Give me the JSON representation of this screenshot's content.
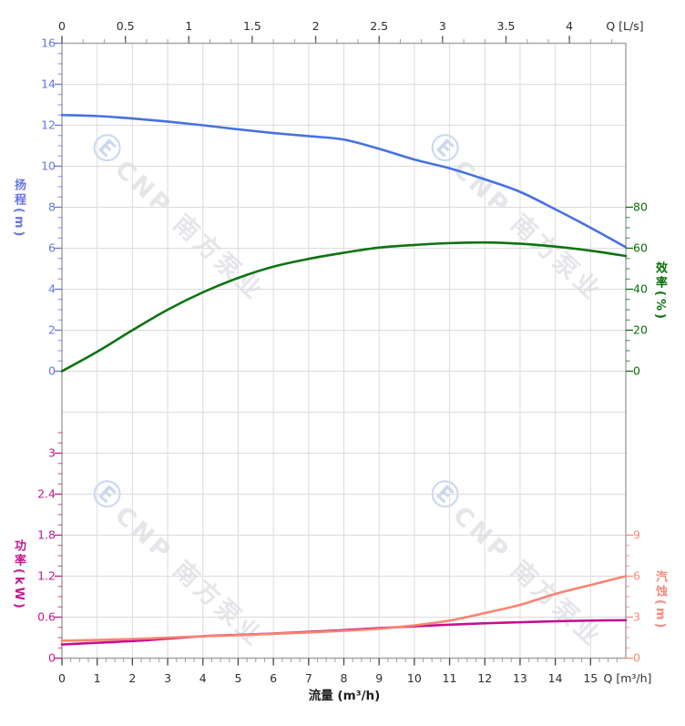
{
  "watermark": {
    "logo": "Ⓔ",
    "text": "CNP 南方泵业"
  },
  "chart_data": {
    "type": "line",
    "title": "",
    "grid": true,
    "axes": {
      "x_top": {
        "unit_label": "Q [L/s]",
        "range_lps": [
          0,
          4.444
        ],
        "majors": [
          0,
          0.5,
          1,
          1.5,
          2,
          2.5,
          3,
          3.5,
          4
        ],
        "minor_step_lps": 0.1667,
        "color": "#2e2e2e"
      },
      "x_bottom": {
        "unit_label": "Q [m³/h]",
        "axis_title": "流量 (m³/h)",
        "range": [
          0,
          16
        ],
        "majors": [
          0,
          1,
          2,
          3,
          4,
          5,
          6,
          7,
          8,
          9,
          10,
          11,
          12,
          13,
          14,
          15
        ],
        "minor_step": 0.25,
        "color": "#2e2e2e"
      },
      "y_head": {
        "title": "扬程(m)",
        "range": [
          0,
          16
        ],
        "majors": [
          0,
          2,
          4,
          6,
          8,
          10,
          12,
          14,
          16
        ],
        "minor_step": 0.5,
        "color": "#6674e4"
      },
      "y_eff": {
        "title": "效率(%)",
        "range": [
          0,
          80
        ],
        "majors": [
          0,
          20,
          40,
          60,
          80
        ],
        "minor_step": 5,
        "color": "#0a6e0a"
      },
      "y_power": {
        "title": "功率(kW)",
        "range": [
          0,
          3.3
        ],
        "majors": [
          0,
          0.6,
          1.2,
          1.8,
          2.4,
          3
        ],
        "minor_step": 0.15,
        "color": "#c6168f"
      },
      "y_npsh": {
        "title": "汽蚀(m)",
        "range": [
          0,
          9
        ],
        "majors": [
          0,
          3,
          6,
          9
        ],
        "minor_step": 0.75,
        "color": "#f9897b"
      }
    },
    "series": [
      {
        "name": "head",
        "y_axis": "y_head",
        "color": "#4572e2",
        "points": [
          [
            0,
            12.5
          ],
          [
            1,
            12.45
          ],
          [
            2,
            12.33
          ],
          [
            3,
            12.18
          ],
          [
            4,
            12.0
          ],
          [
            5,
            11.8
          ],
          [
            6,
            11.62
          ],
          [
            7,
            11.47
          ],
          [
            8,
            11.3
          ],
          [
            9,
            10.85
          ],
          [
            10,
            10.33
          ],
          [
            11,
            9.9
          ],
          [
            12,
            9.36
          ],
          [
            13,
            8.75
          ],
          [
            14,
            7.9
          ],
          [
            15,
            7.0
          ],
          [
            16,
            6.05
          ]
        ]
      },
      {
        "name": "efficiency",
        "y_axis": "y_eff",
        "color": "#0e7310",
        "points": [
          [
            0,
            0
          ],
          [
            1,
            9.5
          ],
          [
            2,
            20
          ],
          [
            3,
            30
          ],
          [
            4,
            38.5
          ],
          [
            5,
            45.5
          ],
          [
            6,
            51
          ],
          [
            7,
            54.8
          ],
          [
            8,
            57.8
          ],
          [
            9,
            60.3
          ],
          [
            10,
            61.6
          ],
          [
            11,
            62.5
          ],
          [
            12,
            62.8
          ],
          [
            13,
            62.2
          ],
          [
            14,
            60.8
          ],
          [
            15,
            58.8
          ],
          [
            16,
            56.2
          ]
        ]
      },
      {
        "name": "power",
        "y_axis": "y_power",
        "color": "#c40f90",
        "points": [
          [
            0,
            0.2
          ],
          [
            1,
            0.225
          ],
          [
            2,
            0.25
          ],
          [
            3,
            0.285
          ],
          [
            4,
            0.32
          ],
          [
            5,
            0.34
          ],
          [
            6,
            0.36
          ],
          [
            7,
            0.385
          ],
          [
            8,
            0.41
          ],
          [
            9,
            0.44
          ],
          [
            10,
            0.465
          ],
          [
            11,
            0.49
          ],
          [
            12,
            0.51
          ],
          [
            13,
            0.525
          ],
          [
            14,
            0.54
          ],
          [
            15,
            0.55
          ],
          [
            16,
            0.555
          ]
        ]
      },
      {
        "name": "npsh",
        "y_axis": "y_npsh",
        "color": "#f98471",
        "points": [
          [
            0,
            1.27
          ],
          [
            1,
            1.33
          ],
          [
            2,
            1.4
          ],
          [
            3,
            1.5
          ],
          [
            4,
            1.6
          ],
          [
            5,
            1.68
          ],
          [
            6,
            1.78
          ],
          [
            7,
            1.88
          ],
          [
            8,
            2.0
          ],
          [
            9,
            2.15
          ],
          [
            10,
            2.4
          ],
          [
            11,
            2.75
          ],
          [
            12,
            3.3
          ],
          [
            13,
            3.9
          ],
          [
            14,
            4.7
          ],
          [
            15,
            5.35
          ],
          [
            16,
            6.0
          ]
        ]
      }
    ]
  }
}
